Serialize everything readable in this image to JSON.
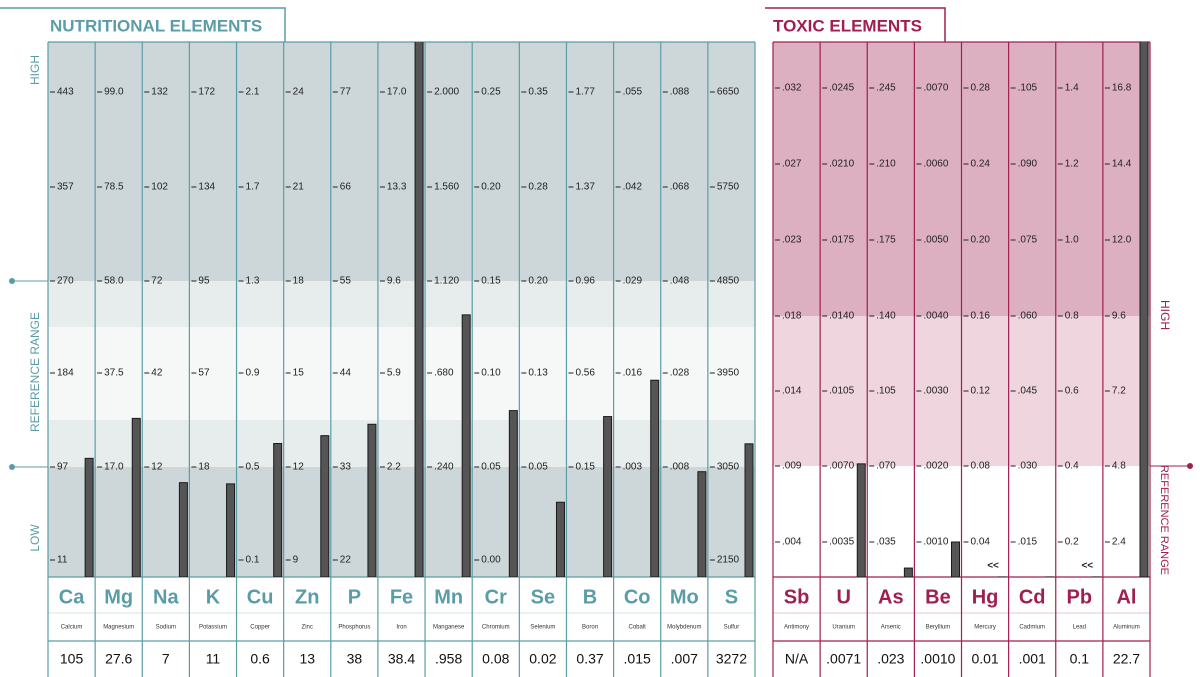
{
  "nutritional": {
    "title": "NUTRITIONAL ELEMENTS",
    "high": "HIGH",
    "reference": "REFERENCE RANGE",
    "low": "LOW",
    "elements": [
      {
        "symbol": "Ca",
        "name": "Calcium",
        "ticks": [
          11,
          97,
          184,
          270,
          357,
          443
        ],
        "result": 105
      },
      {
        "symbol": "Mg",
        "name": "Magnesium",
        "ticks": [
          null,
          {
            "value": 17,
            "label": "17.0"
          },
          37.5,
          {
            "value": 58,
            "label": "58.0"
          },
          78.5,
          {
            "value": 99,
            "label": "99.0"
          }
        ],
        "result": 27.6
      },
      {
        "symbol": "Na",
        "name": "Sodium",
        "ticks": [
          null,
          12,
          42,
          72,
          102,
          132
        ],
        "result": 7
      },
      {
        "symbol": "K",
        "name": "Potassium",
        "ticks": [
          null,
          18,
          57,
          95,
          134,
          172
        ],
        "result": 11
      },
      {
        "symbol": "Cu",
        "name": "Copper",
        "ticks": [
          0.1,
          0.5,
          0.9,
          1.3,
          1.7,
          2.1
        ],
        "result": 0.6
      },
      {
        "symbol": "Zn",
        "name": "Zinc",
        "ticks": [
          9,
          12,
          15,
          18,
          21,
          24
        ],
        "result": 13
      },
      {
        "symbol": "P",
        "name": "Phosphorus",
        "ticks": [
          22,
          33,
          44,
          55,
          66,
          77
        ],
        "result": 38
      },
      {
        "symbol": "Fe",
        "name": "Iron",
        "ticks": [
          null,
          2.2,
          5.9,
          9.6,
          13.3,
          {
            "value": 17,
            "label": "17.0"
          }
        ],
        "result": 38.4
      },
      {
        "symbol": "Mn",
        "name": "Manganese",
        "ticks": [
          null,
          {
            "value": 0.24,
            "label": ".240"
          },
          {
            "value": 0.68,
            "label": ".680"
          },
          {
            "value": 1.12,
            "label": "1.120"
          },
          {
            "value": 1.56,
            "label": "1.560"
          },
          {
            "value": 2,
            "label": "2.000"
          }
        ],
        "result": {
          "value": 0.958,
          "label": ".958"
        }
      },
      {
        "symbol": "Cr",
        "name": "Chromium",
        "ticks": [
          {
            "value": 0,
            "label": "0.00"
          },
          0.05,
          {
            "value": 0.1,
            "label": "0.10"
          },
          0.15,
          {
            "value": 0.2,
            "label": "0.20"
          },
          0.25
        ],
        "result": 0.08
      },
      {
        "symbol": "Se",
        "name": "Selenium",
        "ticks": [
          null,
          0.05,
          0.13,
          {
            "value": 0.2,
            "label": "0.20"
          },
          0.28,
          0.35
        ],
        "result": 0.02
      },
      {
        "symbol": "B",
        "name": "Boron",
        "ticks": [
          null,
          0.15,
          0.56,
          0.96,
          1.37,
          1.77
        ],
        "result": 0.37
      },
      {
        "symbol": "Co",
        "name": "Cobalt",
        "ticks": [
          null,
          {
            "value": 0.003,
            "label": ".003"
          },
          {
            "value": 0.016,
            "label": ".016"
          },
          {
            "value": 0.029,
            "label": ".029"
          },
          {
            "value": 0.042,
            "label": ".042"
          },
          {
            "value": 0.055,
            "label": ".055"
          }
        ],
        "result": {
          "value": 0.015,
          "label": ".015"
        }
      },
      {
        "symbol": "Mo",
        "name": "Molybdenum",
        "ticks": [
          null,
          {
            "value": 0.008,
            "label": ".008"
          },
          {
            "value": 0.028,
            "label": ".028"
          },
          {
            "value": 0.048,
            "label": ".048"
          },
          {
            "value": 0.068,
            "label": ".068"
          },
          {
            "value": 0.088,
            "label": ".088"
          }
        ],
        "result": {
          "value": 0.007,
          "label": ".007"
        }
      },
      {
        "symbol": "S",
        "name": "Sulfur",
        "ticks": [
          2150,
          3050,
          3950,
          4850,
          5750,
          6650
        ],
        "result": 3272
      }
    ]
  },
  "toxic": {
    "title": "TOXIC ELEMENTS",
    "high": "HIGH",
    "reference": "REFERENCE RANGE",
    "elements": [
      {
        "symbol": "Sb",
        "name": "Antimony",
        "ticks": [
          {
            "value": 0.004,
            "label": ".004"
          },
          {
            "value": 0.009,
            "label": ".009"
          },
          {
            "value": 0.014,
            "label": ".014"
          },
          {
            "value": 0.018,
            "label": ".018"
          },
          {
            "value": 0.023,
            "label": ".023"
          },
          {
            "value": 0.027,
            "label": ".027"
          },
          {
            "value": 0.032,
            "label": ".032"
          }
        ],
        "result": {
          "value": null,
          "label": "N/A"
        }
      },
      {
        "symbol": "U",
        "name": "Uranium",
        "ticks": [
          {
            "value": 0.0035,
            "label": ".0035"
          },
          {
            "value": 0.007,
            "label": ".0070"
          },
          {
            "value": 0.0105,
            "label": ".0105"
          },
          {
            "value": 0.014,
            "label": ".0140"
          },
          {
            "value": 0.0175,
            "label": ".0175"
          },
          {
            "value": 0.021,
            "label": ".0210"
          },
          {
            "value": 0.0245,
            "label": ".0245"
          }
        ],
        "result": {
          "value": 0.0071,
          "label": ".0071"
        }
      },
      {
        "symbol": "As",
        "name": "Arsenic",
        "ticks": [
          {
            "value": 0.035,
            "label": ".035"
          },
          {
            "value": 0.07,
            "label": ".070"
          },
          {
            "value": 0.105,
            "label": ".105"
          },
          {
            "value": 0.14,
            "label": ".140"
          },
          {
            "value": 0.175,
            "label": ".175"
          },
          {
            "value": 0.21,
            "label": ".210"
          },
          {
            "value": 0.245,
            "label": ".245"
          }
        ],
        "result": {
          "value": 0.023,
          "label": ".023"
        }
      },
      {
        "symbol": "Be",
        "name": "Beryllium",
        "ticks": [
          {
            "value": 0.001,
            "label": ".0010"
          },
          {
            "value": 0.002,
            "label": ".0020"
          },
          {
            "value": 0.003,
            "label": ".0030"
          },
          {
            "value": 0.004,
            "label": ".0040"
          },
          {
            "value": 0.005,
            "label": ".0050"
          },
          {
            "value": 0.006,
            "label": ".0060"
          },
          {
            "value": 0.007,
            "label": ".0070"
          }
        ],
        "result": {
          "value": 0.001,
          "label": ".0010"
        }
      },
      {
        "symbol": "Hg",
        "name": "Mercury",
        "ticks": [
          0.04,
          0.08,
          0.12,
          0.16,
          {
            "value": 0.2,
            "label": "0.20"
          },
          0.24,
          0.28
        ],
        "result": 0.01,
        "marker": "<<"
      },
      {
        "symbol": "Cd",
        "name": "Cadmium",
        "ticks": [
          {
            "value": 0.015,
            "label": ".015"
          },
          {
            "value": 0.03,
            "label": ".030"
          },
          {
            "value": 0.045,
            "label": ".045"
          },
          {
            "value": 0.06,
            "label": ".060"
          },
          {
            "value": 0.075,
            "label": ".075"
          },
          {
            "value": 0.09,
            "label": ".090"
          },
          {
            "value": 0.105,
            "label": ".105"
          }
        ],
        "result": {
          "value": 0.001,
          "label": ".001"
        }
      },
      {
        "symbol": "Pb",
        "name": "Lead",
        "ticks": [
          0.2,
          0.4,
          0.6,
          0.8,
          {
            "value": 1,
            "label": "1.0"
          },
          1.2,
          1.4
        ],
        "result": 0.1,
        "marker": "<<"
      },
      {
        "symbol": "Al",
        "name": "Aluminum",
        "ticks": [
          2.4,
          4.8,
          7.2,
          9.6,
          {
            "value": 12,
            "label": "12.0"
          },
          14.4,
          16.8
        ],
        "result": 22.7
      }
    ]
  }
}
